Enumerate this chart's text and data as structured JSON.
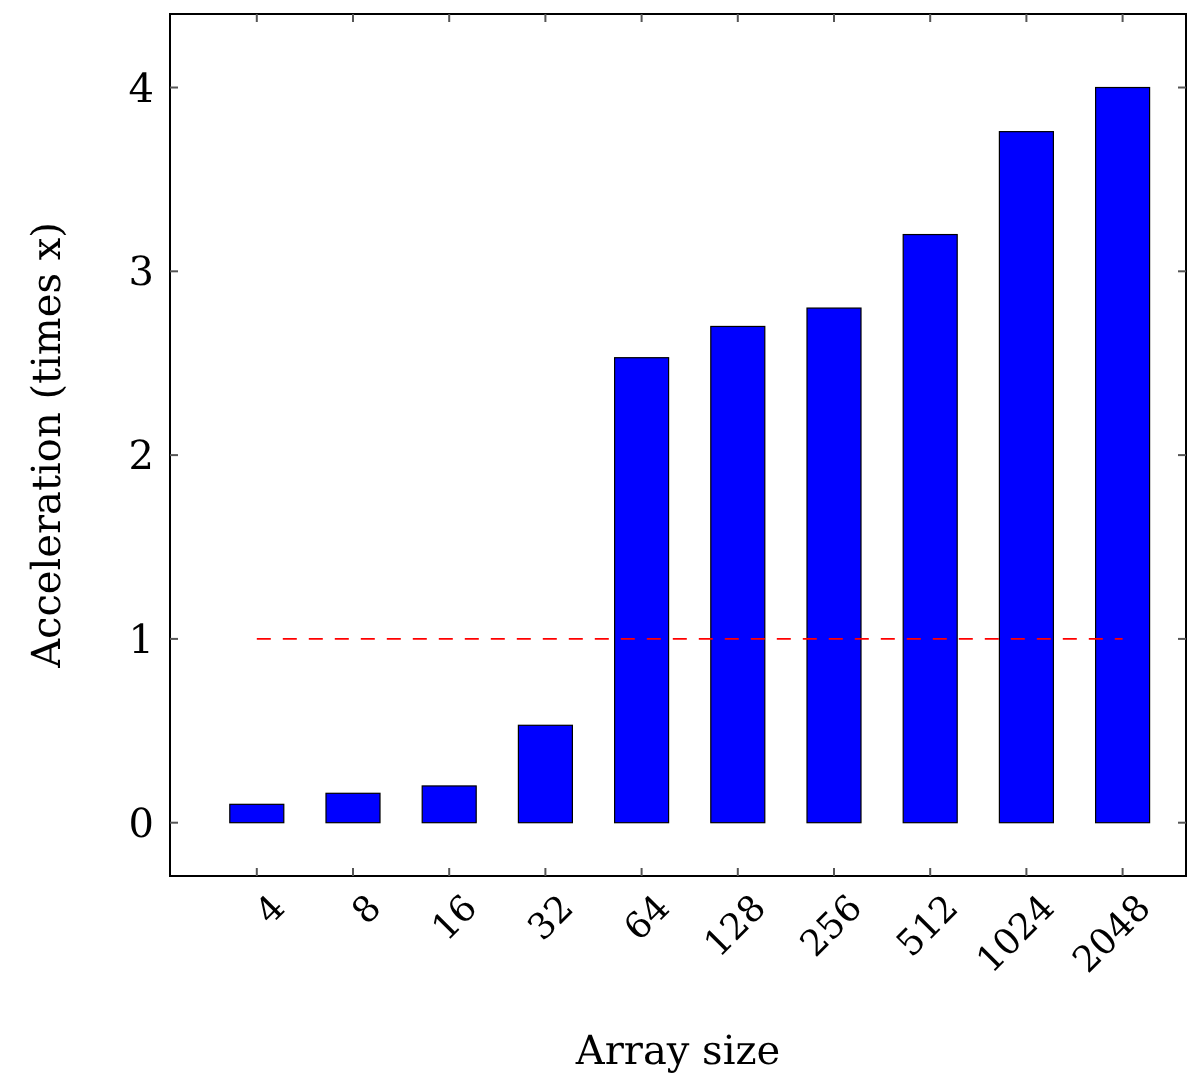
{
  "chart_data": {
    "type": "bar",
    "xlabel": "Array size",
    "ylabel": "Acceleration (times x)",
    "categories": [
      "4",
      "8",
      "16",
      "32",
      "64",
      "128",
      "256",
      "512",
      "1024",
      "2048"
    ],
    "values": [
      0.1,
      0.16,
      0.2,
      0.53,
      2.53,
      2.7,
      2.8,
      3.2,
      3.76,
      4.0
    ],
    "color": "#0000ff",
    "ylim": [
      -0.29,
      4.4
    ],
    "yticks": [
      0,
      1,
      2,
      3,
      4
    ],
    "grid": false,
    "ref_lines": [
      {
        "axis": "y",
        "value": 1,
        "label": null,
        "color": "#ff0000",
        "line_style": "dashed"
      }
    ]
  }
}
